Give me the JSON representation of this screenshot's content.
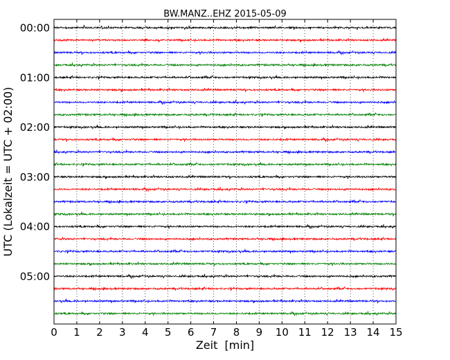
{
  "chart_data": {
    "type": "line",
    "title": "BW.MANZ..EHZ 2015-05-09",
    "xlabel": "Zeit  [min]",
    "ylabel": "UTC (Lokalzeit = UTC + 02:00)",
    "xlim": [
      0,
      15
    ],
    "x_ticks": [
      "0",
      "1",
      "2",
      "3",
      "4",
      "5",
      "6",
      "7",
      "8",
      "9",
      "10",
      "11",
      "12",
      "13",
      "14",
      "15"
    ],
    "y_ticks": [
      "00:00",
      "01:00",
      "02:00",
      "03:00",
      "04:00",
      "05:00"
    ],
    "grid": "vertical dotted",
    "trace_colors": [
      "#000000",
      "#ff0000",
      "#0000ff",
      "#008000"
    ],
    "series": [
      {
        "label": "00:00",
        "color": "#000000"
      },
      {
        "label": "00:15",
        "color": "#ff0000"
      },
      {
        "label": "00:30",
        "color": "#0000ff"
      },
      {
        "label": "00:45",
        "color": "#008000"
      },
      {
        "label": "01:00",
        "color": "#000000"
      },
      {
        "label": "01:15",
        "color": "#ff0000"
      },
      {
        "label": "01:30",
        "color": "#0000ff"
      },
      {
        "label": "01:45",
        "color": "#008000"
      },
      {
        "label": "02:00",
        "color": "#000000"
      },
      {
        "label": "02:15",
        "color": "#ff0000"
      },
      {
        "label": "02:30",
        "color": "#0000ff"
      },
      {
        "label": "02:45",
        "color": "#008000"
      },
      {
        "label": "03:00",
        "color": "#000000"
      },
      {
        "label": "03:15",
        "color": "#ff0000"
      },
      {
        "label": "03:30",
        "color": "#0000ff"
      },
      {
        "label": "03:45",
        "color": "#008000"
      },
      {
        "label": "04:00",
        "color": "#000000"
      },
      {
        "label": "04:15",
        "color": "#ff0000"
      },
      {
        "label": "04:30",
        "color": "#0000ff"
      },
      {
        "label": "04:45",
        "color": "#008000"
      },
      {
        "label": "05:00",
        "color": "#000000"
      },
      {
        "label": "05:15",
        "color": "#ff0000"
      },
      {
        "label": "05:30",
        "color": "#0000ff"
      },
      {
        "label": "05:45",
        "color": "#008000"
      }
    ]
  }
}
